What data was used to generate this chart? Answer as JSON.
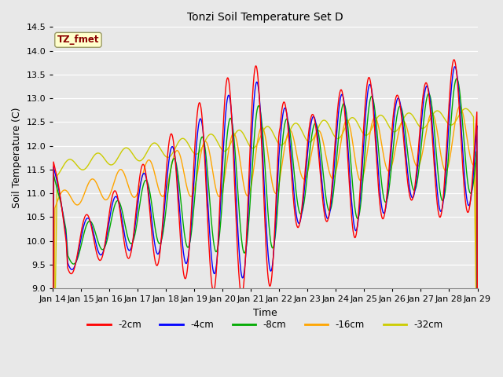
{
  "title": "Tonzi Soil Temperature Set D",
  "xlabel": "Time",
  "ylabel": "Soil Temperature (C)",
  "ylim": [
    9.0,
    14.5
  ],
  "annotation": "TZ_fmet",
  "annotation_color": "#8B0000",
  "annotation_bg": "#FFFFCC",
  "bg_color": "#E8E8E8",
  "colors": {
    "-2cm": "#FF0000",
    "-4cm": "#0000FF",
    "-8cm": "#00AA00",
    "-16cm": "#FFA500",
    "-32cm": "#CCCC00"
  },
  "x_ticks": [
    "Jan 14",
    "Jan 15",
    "Jan 16",
    "Jan 17",
    "Jan 18",
    "Jan 19",
    "Jan 20",
    "Jan 21",
    "Jan 22",
    "Jan 23",
    "Jan 24",
    "Jan 25",
    "Jan 26",
    "Jan 27",
    "Jan 28",
    "Jan 29"
  ],
  "figsize": [
    6.4,
    4.8
  ],
  "dpi": 100
}
